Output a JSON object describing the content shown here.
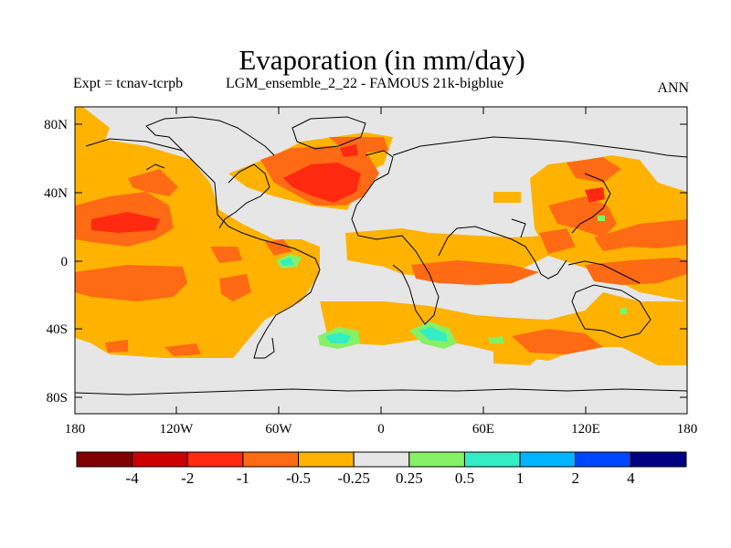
{
  "header": {
    "title": "Evaporation (in mm/day)",
    "experiment": "Expt = tcnav-tcrpb",
    "description": "LGM_ensemble_2_22 - FAMOUS 21k-bigblue",
    "season": "ANN"
  },
  "map": {
    "lat_labels": [
      "80N",
      "40N",
      "0",
      "40S",
      "80S"
    ],
    "lon_labels": [
      "180",
      "120W",
      "60W",
      "0",
      "60E",
      "120E",
      "180"
    ]
  },
  "colorbar": {
    "colors": [
      "#800000",
      "#cc0000",
      "#ff2a0f",
      "#ff6a14",
      "#ffb300",
      "#e6e6e6",
      "#86f066",
      "#33eec4",
      "#00b4ff",
      "#0045ff",
      "#000080"
    ],
    "labels": [
      "-4",
      "-2",
      "-1",
      "-0.5",
      "-0.25",
      "0.25",
      "0.5",
      "1",
      "2",
      "4"
    ]
  },
  "colors": {
    "ocean_background": "#e6e6e6",
    "coastline": "#000000"
  }
}
